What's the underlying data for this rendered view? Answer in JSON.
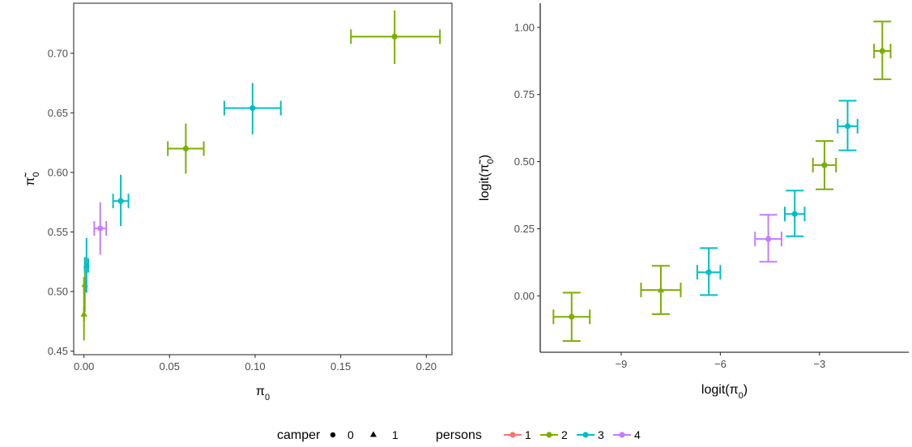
{
  "chart_data": [
    {
      "type": "scatter",
      "id": "left",
      "xlabel": "π",
      "xlabel_sub": "0",
      "ylabel": "π̃",
      "ylabel_sub": "0",
      "xlim": [
        -0.006,
        0.215
      ],
      "ylim": [
        0.447,
        0.742
      ],
      "x_ticks": [
        0.0,
        0.05,
        0.1,
        0.15,
        0.2
      ],
      "x_tick_labels": [
        "0.00",
        "0.05",
        "0.10",
        "0.15",
        "0.20"
      ],
      "y_ticks": [
        0.45,
        0.5,
        0.55,
        0.6,
        0.65,
        0.7
      ],
      "y_tick_labels": [
        "0.45",
        "0.50",
        "0.55",
        "0.60",
        "0.65",
        "0.70"
      ],
      "grid": false,
      "points": [
        {
          "x": 0.0,
          "y": 0.481,
          "xlo": 0.0,
          "xhi": 0.0,
          "ylo": 0.459,
          "yhi": 0.504,
          "persons": "2",
          "camper": "1"
        },
        {
          "x": 0.0005,
          "y": 0.506,
          "xlo": 0.0,
          "xhi": 0.001,
          "ylo": 0.483,
          "yhi": 0.529,
          "persons": "2",
          "camper": "1"
        },
        {
          "x": 0.0015,
          "y": 0.522,
          "xlo": 0.0005,
          "xhi": 0.0025,
          "ylo": 0.499,
          "yhi": 0.545,
          "persons": "3",
          "camper": "1"
        },
        {
          "x": 0.0095,
          "y": 0.553,
          "xlo": 0.006,
          "xhi": 0.013,
          "ylo": 0.531,
          "yhi": 0.575,
          "persons": "4",
          "camper": "0"
        },
        {
          "x": 0.0215,
          "y": 0.576,
          "xlo": 0.017,
          "xhi": 0.026,
          "ylo": 0.555,
          "yhi": 0.598,
          "persons": "3",
          "camper": "0"
        },
        {
          "x": 0.0595,
          "y": 0.62,
          "xlo": 0.049,
          "xhi": 0.07,
          "ylo": 0.599,
          "yhi": 0.641,
          "persons": "2",
          "camper": "0"
        },
        {
          "x": 0.0985,
          "y": 0.654,
          "xlo": 0.082,
          "xhi": 0.115,
          "ylo": 0.632,
          "yhi": 0.675,
          "persons": "3",
          "camper": "0"
        },
        {
          "x": 0.1815,
          "y": 0.714,
          "xlo": 0.156,
          "xhi": 0.208,
          "ylo": 0.691,
          "yhi": 0.736,
          "persons": "2",
          "camper": "0"
        }
      ]
    },
    {
      "type": "scatter",
      "id": "right",
      "xlabel": "logit(π",
      "xlabel_sub": "0",
      "xlabel_end": ")",
      "ylabel": "logit(π̃",
      "ylabel_sub": "0",
      "ylabel_end": ")",
      "xlim": [
        -11.45,
        -0.3
      ],
      "ylim": [
        -0.21,
        1.09
      ],
      "x_ticks": [
        -9,
        -6,
        -3
      ],
      "x_tick_labels": [
        "−9",
        "−6",
        "−3"
      ],
      "y_ticks": [
        0.0,
        0.25,
        0.5,
        0.75,
        1.0
      ],
      "y_tick_labels": [
        "0.00",
        "0.25",
        "0.50",
        "0.75",
        "1.00"
      ],
      "grid": false,
      "points": [
        {
          "x": -10.5,
          "y": -0.078,
          "xlo": -11.05,
          "xhi": -9.95,
          "ylo": -0.168,
          "yhi": 0.012,
          "persons": "2",
          "camper": "0"
        },
        {
          "x": -7.8,
          "y": 0.022,
          "xlo": -8.4,
          "xhi": -7.2,
          "ylo": -0.068,
          "yhi": 0.112,
          "persons": "2",
          "camper": "1"
        },
        {
          "x": -6.35,
          "y": 0.088,
          "xlo": -6.7,
          "xhi": -6.0,
          "ylo": 0.003,
          "yhi": 0.178,
          "persons": "3",
          "camper": "0"
        },
        {
          "x": -4.55,
          "y": 0.212,
          "xlo": -4.95,
          "xhi": -4.15,
          "ylo": 0.127,
          "yhi": 0.302,
          "persons": "4",
          "camper": "0"
        },
        {
          "x": -3.75,
          "y": 0.305,
          "xlo": -4.05,
          "xhi": -3.45,
          "ylo": 0.222,
          "yhi": 0.392,
          "persons": "3",
          "camper": "0"
        },
        {
          "x": -2.85,
          "y": 0.487,
          "xlo": -3.2,
          "xhi": -2.5,
          "ylo": 0.397,
          "yhi": 0.577,
          "persons": "2",
          "camper": "0"
        },
        {
          "x": -2.15,
          "y": 0.632,
          "xlo": -2.45,
          "xhi": -1.85,
          "ylo": 0.542,
          "yhi": 0.727,
          "persons": "3",
          "camper": "0"
        },
        {
          "x": -1.1,
          "y": 0.912,
          "xlo": -1.35,
          "xhi": -0.85,
          "ylo": 0.807,
          "yhi": 1.022,
          "persons": "2",
          "camper": "0"
        }
      ]
    }
  ],
  "legend": {
    "placement": "bottom",
    "camper": {
      "title": "camper",
      "items": [
        {
          "label": "0",
          "shape": "circle"
        },
        {
          "label": "1",
          "shape": "triangle"
        }
      ]
    },
    "persons": {
      "title": "persons",
      "items": [
        {
          "label": "1"
        },
        {
          "label": "2"
        },
        {
          "label": "3"
        },
        {
          "label": "4"
        }
      ]
    }
  },
  "colors": {
    "1": "#F8766D",
    "2": "#7CAE00",
    "3": "#00BFC4",
    "4": "#C77CFF"
  }
}
